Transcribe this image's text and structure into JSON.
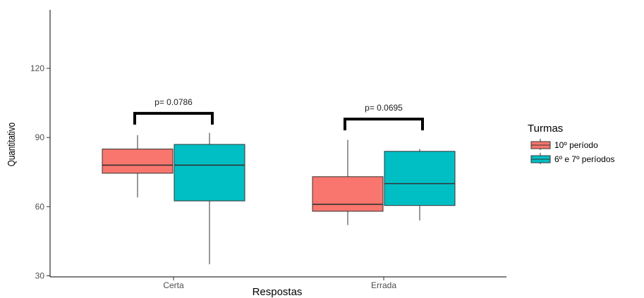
{
  "chart_data": {
    "type": "boxplot",
    "title": "",
    "xlabel": "Respostas",
    "ylabel": "Quantitativo",
    "ylim": [
      30,
      145
    ],
    "yticks": [
      30,
      60,
      90,
      120
    ],
    "grid": false,
    "legend_position": "right",
    "categories": [
      "Certa",
      "Errada"
    ],
    "legend": {
      "title": "Turmas",
      "entries": [
        {
          "name": "10º período",
          "color": "#F8766D"
        },
        {
          "name": "6º e 7º períodos",
          "color": "#00BFC4"
        }
      ]
    },
    "series": [
      {
        "name": "10º período",
        "color": "#F8766D",
        "boxes": [
          {
            "category": "Certa",
            "min": 64,
            "q1": 74.5,
            "median": 78,
            "q3": 85,
            "max": 91
          },
          {
            "category": "Errada",
            "min": 52,
            "q1": 58,
            "median": 61,
            "q3": 73,
            "max": 89
          }
        ]
      },
      {
        "name": "6º e 7º períodos",
        "color": "#00BFC4",
        "boxes": [
          {
            "category": "Certa",
            "min": 35,
            "q1": 62.5,
            "median": 78,
            "q3": 87,
            "max": 92
          },
          {
            "category": "Errada",
            "min": 54,
            "q1": 60.5,
            "median": 70,
            "q3": 84,
            "max": 85
          }
        ]
      }
    ],
    "annotations": [
      {
        "category": "Certa",
        "label": "p= 0.0786",
        "bracket_y": 100.5
      },
      {
        "category": "Errada",
        "label": "p= 0.0695",
        "bracket_y": 98
      }
    ]
  }
}
